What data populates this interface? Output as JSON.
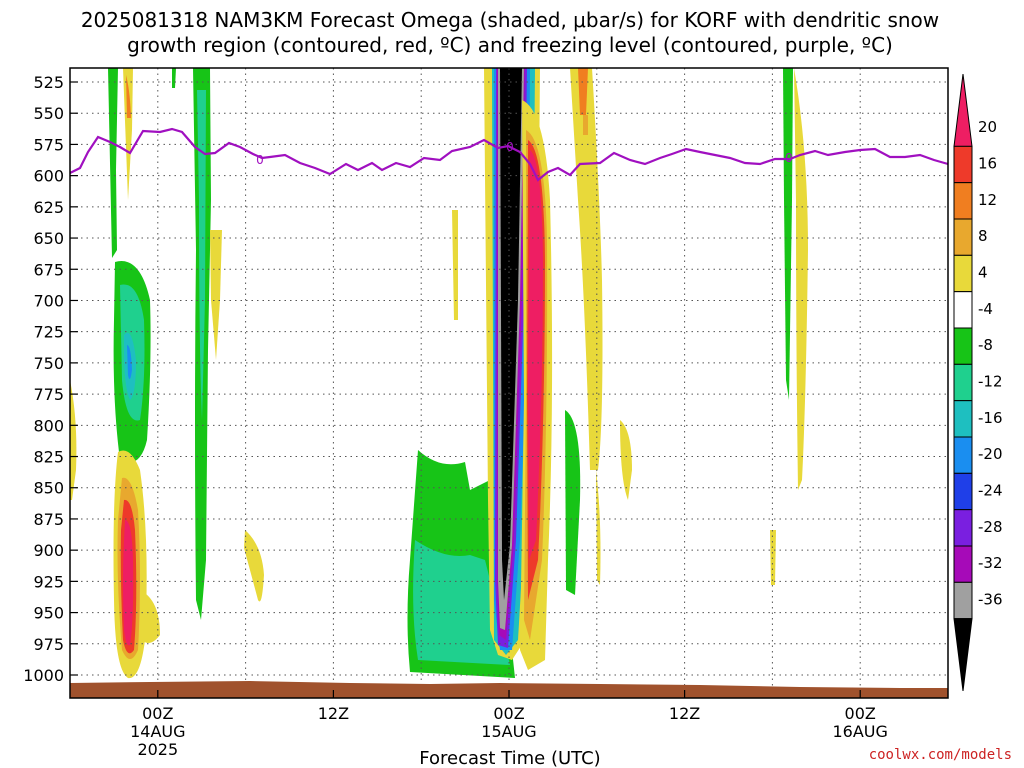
{
  "chart_data": {
    "type": "heatmap",
    "title_line1": "2025081318 NAM3KM Forecast Omega (shaded, μbar/s) for KORF with dendritic snow",
    "title_line2": "growth region (contoured, red, ºC) and freezing level (contoured, purple, ºC)",
    "xlabel": "Forecast Time (UTC)",
    "ylabel": "",
    "y_axis": {
      "units": "mb",
      "ticks": [
        525,
        550,
        575,
        600,
        625,
        650,
        675,
        700,
        725,
        750,
        775,
        800,
        825,
        850,
        875,
        900,
        925,
        950,
        975,
        1000
      ]
    },
    "x_axis": {
      "ticks": [
        {
          "time": "2025-08-14T00Z",
          "label": "00Z",
          "sub": "14AUG",
          "sub2": "2025"
        },
        {
          "time": "2025-08-14T12Z",
          "label": "12Z",
          "sub": "",
          "sub2": ""
        },
        {
          "time": "2025-08-15T00Z",
          "label": "00Z",
          "sub": "15AUG",
          "sub2": ""
        },
        {
          "time": "2025-08-15T12Z",
          "label": "12Z",
          "sub": "",
          "sub2": ""
        },
        {
          "time": "2025-08-16T00Z",
          "label": "00Z",
          "sub": "16AUG",
          "sub2": ""
        }
      ],
      "range": [
        "2025-08-13T18Z",
        "2025-08-16T06Z"
      ]
    },
    "grid": true,
    "colorbar": {
      "labels": [
        "20",
        "16",
        "12",
        "8",
        "4",
        "-4",
        "-8",
        "-12",
        "-16",
        "-20",
        "-24",
        "-28",
        "-32",
        "-36"
      ],
      "colors": [
        "#ee1e63",
        "#ee3a2a",
        "#f07e20",
        "#e8a82e",
        "#e8d93a",
        "#ffffff",
        "#17c417",
        "#1fd08e",
        "#1ebfc0",
        "#1a8ef0",
        "#1f3fe8",
        "#7a1fe0",
        "#a60ab8",
        "#a0a0a0",
        "#000000"
      ]
    },
    "freezing_level_contour_label": "0",
    "credit": "coolwx.com/models"
  }
}
